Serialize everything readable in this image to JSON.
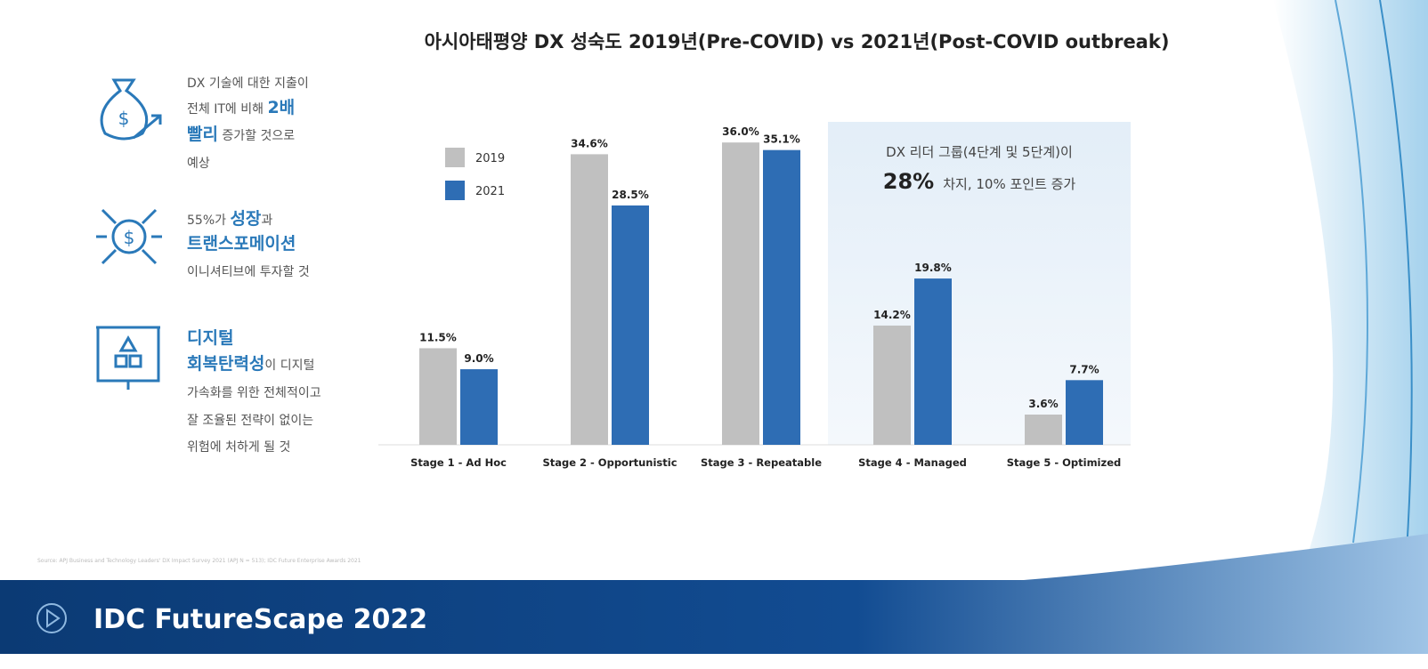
{
  "chart_data": {
    "type": "bar",
    "title": "아시아태평양 DX 성숙도 2019년(Pre-COVID) vs 2021년(Post-COVID outbreak)",
    "categories": [
      "Stage 1 - Ad Hoc",
      "Stage 2 - Opportunistic",
      "Stage 3 - Repeatable",
      "Stage 4 - Managed",
      "Stage 5 - Optimized"
    ],
    "series": [
      {
        "name": "2019",
        "color": "#c0c0c0",
        "values": [
          11.5,
          34.6,
          36.0,
          14.2,
          3.6
        ],
        "value_labels": [
          "11.5%",
          "34.6%",
          "36.0%",
          "14.2%",
          "3.6%"
        ]
      },
      {
        "name": "2021",
        "color": "#2e6db4",
        "values": [
          9.0,
          28.5,
          35.1,
          19.8,
          7.7
        ],
        "value_labels": [
          "9.0%",
          "28.5%",
          "35.1%",
          "19.8%",
          "7.7%"
        ]
      }
    ],
    "annotation": {
      "line1": "DX 리더 그룹(4단계 및 5단계)이",
      "highlight": "28%",
      "line2": "차지, 10% 포인트 증가"
    }
  },
  "sidebar": [
    {
      "lines": [
        [
          {
            "text": "DX 기술에 대한 지출이",
            "strong": false
          }
        ],
        [
          {
            "text": "전체 IT에 비해 ",
            "strong": false
          },
          {
            "text": "2배",
            "strong": true
          }
        ],
        [
          {
            "text": "빨리",
            "strong": true
          },
          {
            "text": " 증가할 것으로",
            "strong": false
          }
        ],
        [
          {
            "text": "예상",
            "strong": false
          }
        ]
      ]
    },
    {
      "lines": [
        [
          {
            "text": "55%가 ",
            "strong": false
          },
          {
            "text": "성장",
            "strong": true
          },
          {
            "text": "과",
            "strong": false
          }
        ],
        [
          {
            "text": "트랜스포메이션",
            "strong": true
          }
        ],
        [
          {
            "text": "이니셔티브에 투자할 것",
            "strong": false
          }
        ]
      ]
    },
    {
      "lines": [
        [
          {
            "text": "디지털",
            "strong": true
          }
        ],
        [
          {
            "text": "회복탄력성",
            "strong": true
          },
          {
            "text": "이 디지털",
            "strong": false
          }
        ],
        [
          {
            "text": "가속화를 위한 전체적이고",
            "strong": false
          }
        ],
        [
          {
            "text": "잘 조율된 전략이 없이는",
            "strong": false
          }
        ],
        [
          {
            "text": "위험에 처하게 될 것",
            "strong": false
          }
        ]
      ]
    }
  ],
  "footer": {
    "source": "Source: APJ Business and Technology Leaders' DX Impact Survey 2021 (APJ N = 513); IDC Future Enterprise Awards 2021",
    "brand": "IDC FutureScape 2022"
  }
}
